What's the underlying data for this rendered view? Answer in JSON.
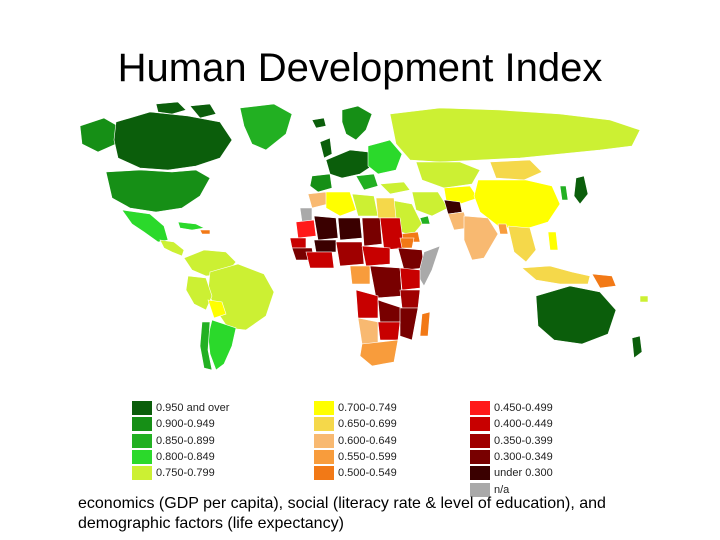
{
  "title": "Human Development Index",
  "map": {
    "name": "World HDI choropleth map"
  },
  "legend": {
    "columns": [
      [
        {
          "label": "0.950 and over",
          "color": "#0b5e0b"
        },
        {
          "label": "0.900-0.949",
          "color": "#168f16"
        },
        {
          "label": "0.850-0.899",
          "color": "#22b022"
        },
        {
          "label": "0.800-0.849",
          "color": "#2bd92b"
        },
        {
          "label": "0.750-0.799",
          "color": "#ccf033"
        }
      ],
      [
        {
          "label": "0.700-0.749",
          "color": "#ffff00"
        },
        {
          "label": "0.650-0.699",
          "color": "#f5d84a"
        },
        {
          "label": "0.600-0.649",
          "color": "#f8b971"
        },
        {
          "label": "0.550-0.599",
          "color": "#f89c3c"
        },
        {
          "label": "0.500-0.549",
          "color": "#f27916"
        }
      ],
      [
        {
          "label": "0.450-0.499",
          "color": "#ff1a1a"
        },
        {
          "label": "0.400-0.449",
          "color": "#c80000"
        },
        {
          "label": "0.350-0.399",
          "color": "#a00000"
        },
        {
          "label": "0.300-0.349",
          "color": "#780000"
        },
        {
          "label": "under 0.300",
          "color": "#3a0000"
        },
        {
          "label": "n/a",
          "color": "#a9a9a9"
        }
      ]
    ]
  },
  "caption": "economics (GDP per capita), social (literacy rate & level of education), and demographic factors (life expectancy)"
}
